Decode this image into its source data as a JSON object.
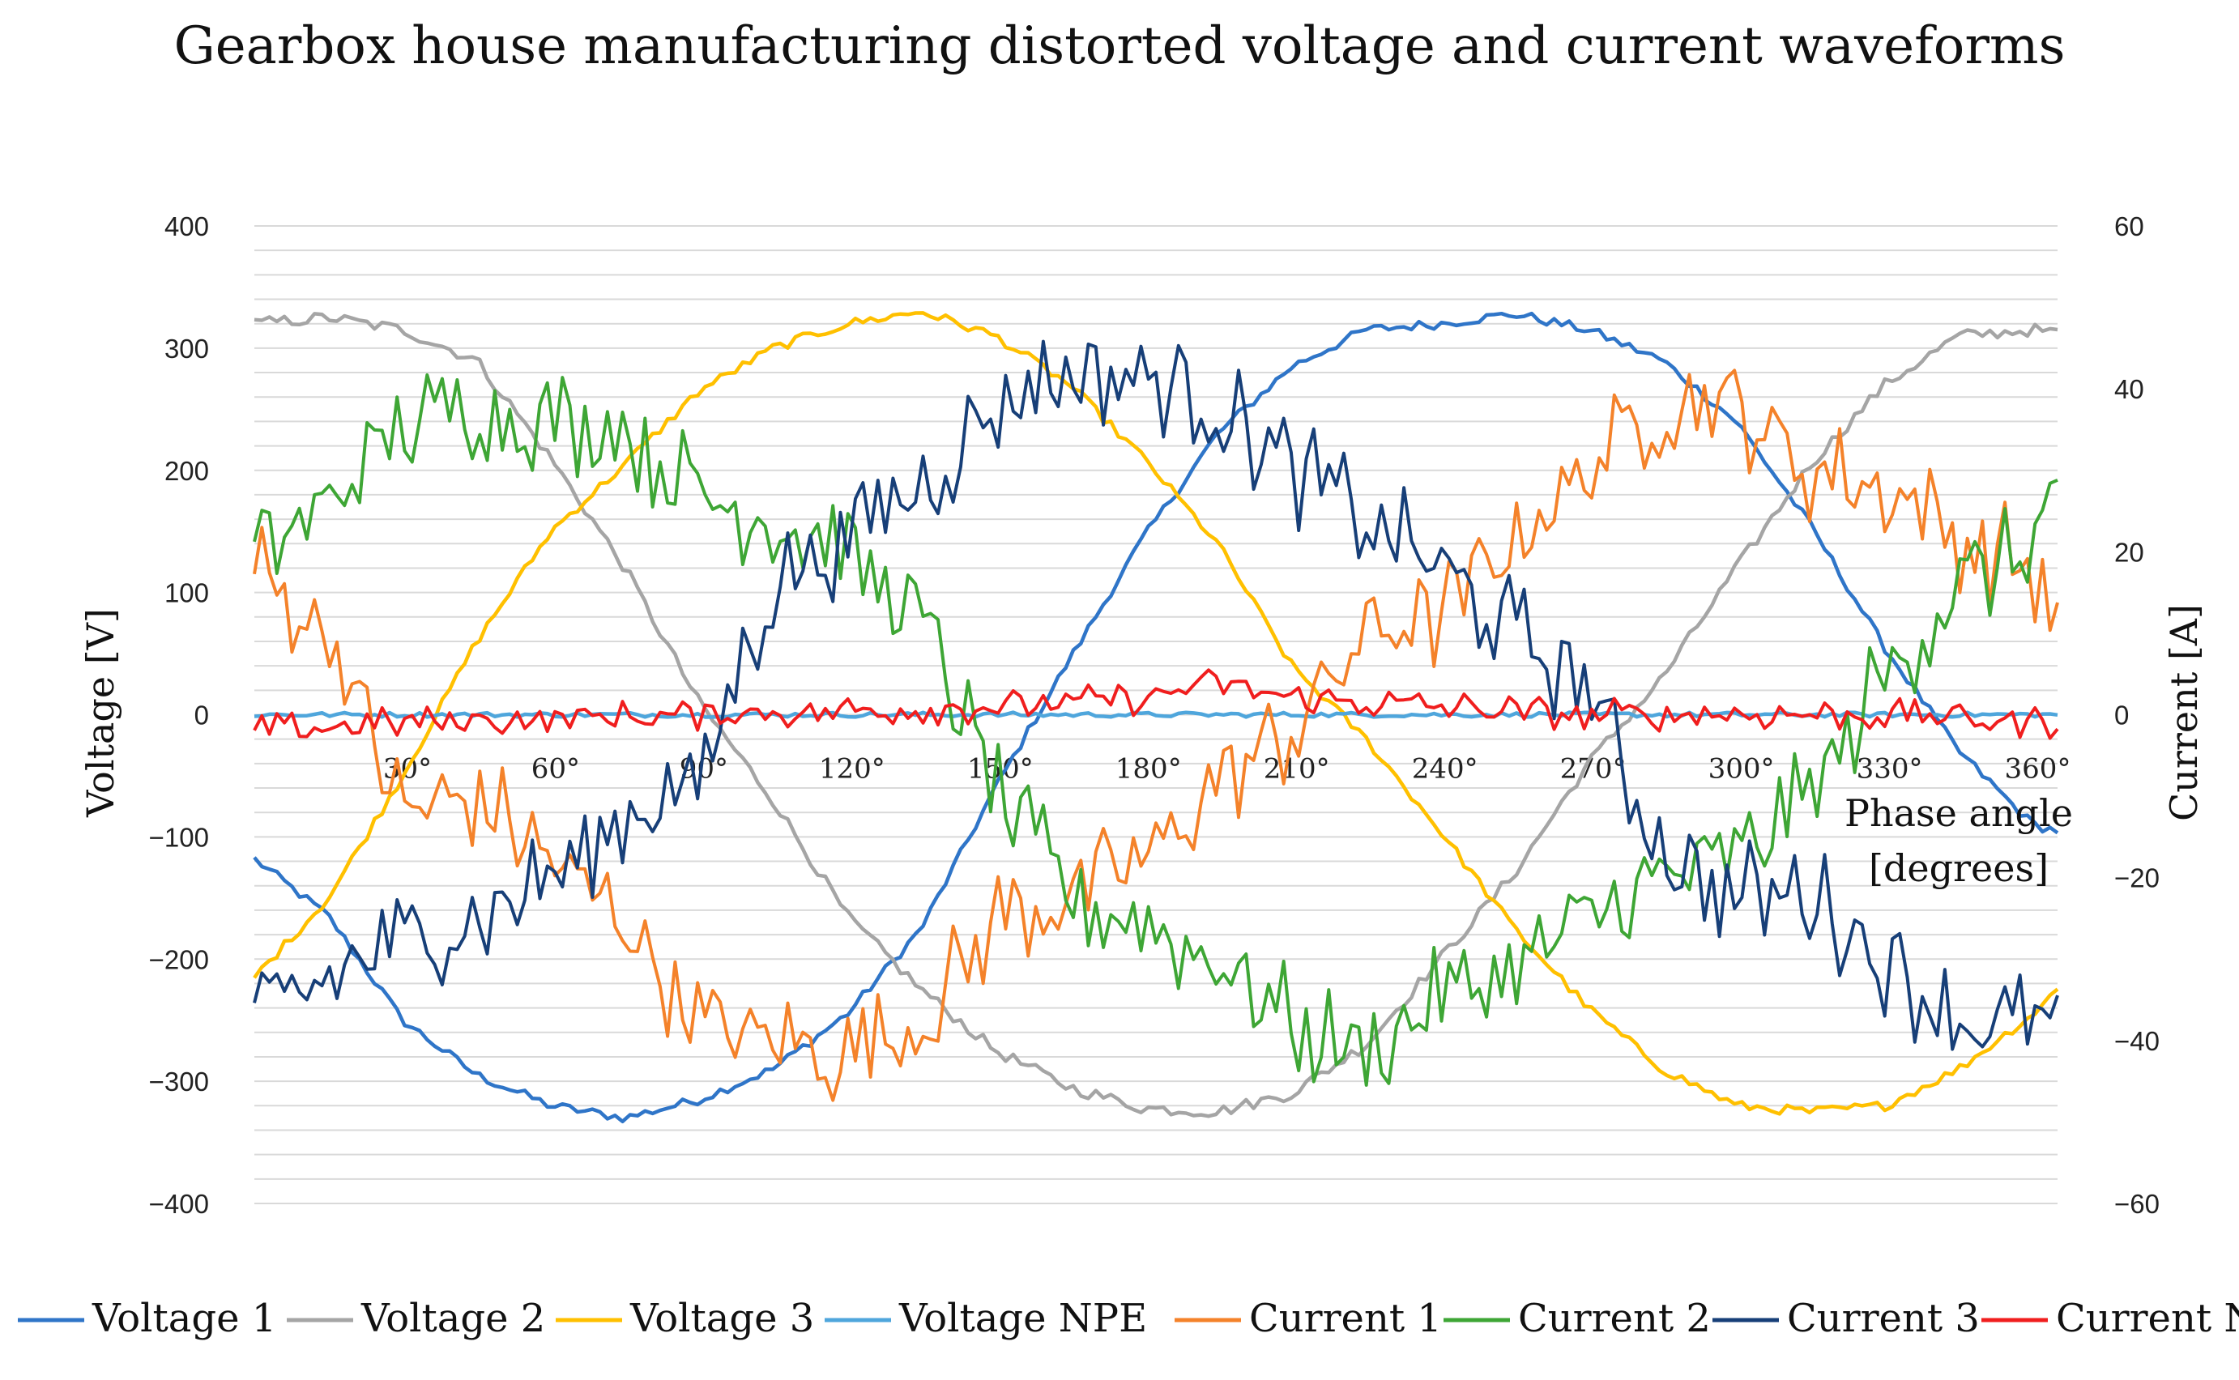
{
  "chart_data": {
    "type": "line",
    "title": "Gearbox house manufacturing distorted voltage and current waveforms",
    "xlabel": "Phase angle [degrees]",
    "xlabel_lines": [
      "Phase angle",
      "[degrees]"
    ],
    "ylabel_left": "Voltage [V]",
    "ylabel_right": "Current [A]",
    "x_range": [
      0,
      365
    ],
    "ylim_left": [
      -400,
      400
    ],
    "ylim_right": [
      -60,
      60
    ],
    "left_ticks": [
      400,
      300,
      200,
      100,
      0,
      -100,
      -200,
      -300,
      -400
    ],
    "left_tick_labels": [
      "400",
      "300",
      "200",
      "100",
      "0",
      "−100",
      "−200",
      "−300",
      "−400"
    ],
    "right_ticks": [
      60,
      40,
      20,
      0,
      -20,
      -40,
      -60
    ],
    "right_tick_labels": [
      "60",
      "40",
      "20",
      "0",
      "−20",
      "−40",
      "−60"
    ],
    "x_ticks": [
      30,
      60,
      90,
      120,
      150,
      180,
      210,
      240,
      270,
      300,
      330,
      360
    ],
    "x_tick_labels": [
      "30°",
      "60°",
      "90°",
      "120°",
      "150°",
      "180°",
      "210°",
      "240°",
      "270°",
      "300°",
      "330°",
      "360°"
    ],
    "grid": true,
    "gridline_step_left": 20,
    "legend_position": "bottom",
    "series": [
      {
        "name": "Voltage 1",
        "axis": "left",
        "color": "#2F75C8",
        "x": [
          0,
          15,
          30,
          45,
          60,
          75,
          90,
          105,
          120,
          135,
          150,
          165,
          180,
          195,
          210,
          225,
          240,
          255,
          270,
          285,
          300,
          315,
          330,
          345,
          360,
          365
        ],
        "y": [
          -118,
          -165,
          -250,
          -295,
          -320,
          -330,
          -315,
          -290,
          -245,
          -175,
          -60,
          45,
          145,
          230,
          285,
          315,
          320,
          328,
          315,
          290,
          240,
          155,
          55,
          -30,
          -90,
          -95
        ],
        "noise": 4
      },
      {
        "name": "Voltage 2",
        "axis": "left",
        "color": "#A5A5A5",
        "x": [
          0,
          15,
          30,
          45,
          60,
          75,
          90,
          105,
          120,
          135,
          150,
          165,
          180,
          195,
          210,
          225,
          240,
          255,
          270,
          285,
          300,
          315,
          330,
          345,
          360,
          365
        ],
        "y": [
          320,
          325,
          315,
          290,
          210,
          120,
          10,
          -70,
          -165,
          -225,
          -275,
          -305,
          -322,
          -325,
          -310,
          -270,
          -200,
          -130,
          -40,
          30,
          120,
          205,
          270,
          310,
          315,
          312
        ],
        "noise": 5
      },
      {
        "name": "Voltage 3",
        "axis": "left",
        "color": "#FFC000",
        "x": [
          0,
          15,
          30,
          45,
          60,
          75,
          90,
          105,
          120,
          135,
          150,
          165,
          180,
          195,
          210,
          225,
          240,
          255,
          270,
          285,
          300,
          315,
          330,
          345,
          360,
          365
        ],
        "y": [
          -215,
          -150,
          -50,
          60,
          150,
          205,
          265,
          300,
          320,
          330,
          310,
          270,
          210,
          140,
          40,
          -20,
          -95,
          -175,
          -240,
          -290,
          -320,
          -325,
          -320,
          -290,
          -245,
          -225
        ],
        "noise": 4
      },
      {
        "name": "Voltage NPE",
        "axis": "left",
        "color": "#4FA6DC",
        "x": [
          0,
          365
        ],
        "y": [
          0,
          0
        ],
        "noise": 2
      },
      {
        "name": "Current 1",
        "axis": "right",
        "color": "#F4822A",
        "x": [
          0,
          15,
          30,
          45,
          60,
          75,
          90,
          105,
          120,
          135,
          150,
          165,
          180,
          195,
          210,
          225,
          240,
          255,
          270,
          285,
          300,
          315,
          330,
          345,
          360,
          365
        ],
        "y": [
          18,
          10,
          -12,
          -10,
          -18,
          -25,
          -38,
          -40,
          -42,
          -38,
          -25,
          -22,
          -18,
          -8,
          -2,
          10,
          12,
          22,
          30,
          38,
          38,
          30,
          28,
          22,
          18,
          12
        ],
        "noise": 5
      },
      {
        "name": "Current 2",
        "axis": "right",
        "color": "#3EA635",
        "x": [
          0,
          15,
          30,
          45,
          60,
          75,
          90,
          105,
          120,
          135,
          150,
          165,
          180,
          195,
          210,
          225,
          240,
          255,
          270,
          285,
          300,
          315,
          330,
          345,
          360,
          365
        ],
        "y": [
          20,
          26,
          35,
          38,
          36,
          35,
          27,
          24,
          20,
          12,
          -10,
          -22,
          -26,
          -30,
          -38,
          -42,
          -35,
          -32,
          -25,
          -20,
          -18,
          -10,
          5,
          16,
          20,
          30
        ],
        "noise": 5
      },
      {
        "name": "Current 3",
        "axis": "right",
        "color": "#173F78",
        "x": [
          0,
          15,
          30,
          45,
          60,
          75,
          90,
          105,
          120,
          135,
          150,
          165,
          180,
          195,
          210,
          225,
          240,
          255,
          270,
          285,
          300,
          315,
          330,
          345,
          360,
          365
        ],
        "y": [
          -38,
          -32,
          -28,
          -25,
          -20,
          -12,
          -8,
          16,
          22,
          28,
          38,
          42,
          42,
          38,
          30,
          24,
          18,
          10,
          3,
          -17,
          -22,
          -22,
          -30,
          -38,
          -38,
          -38
        ],
        "noise": 5
      },
      {
        "name": "Current N",
        "axis": "right",
        "color": "#F01E1E",
        "x": [
          0,
          30,
          90,
          150,
          180,
          195,
          210,
          240,
          270,
          330,
          365
        ],
        "y": [
          -2,
          -1,
          0,
          1,
          2,
          4,
          2,
          1,
          0,
          0,
          -1
        ],
        "noise": 1.5
      }
    ]
  }
}
